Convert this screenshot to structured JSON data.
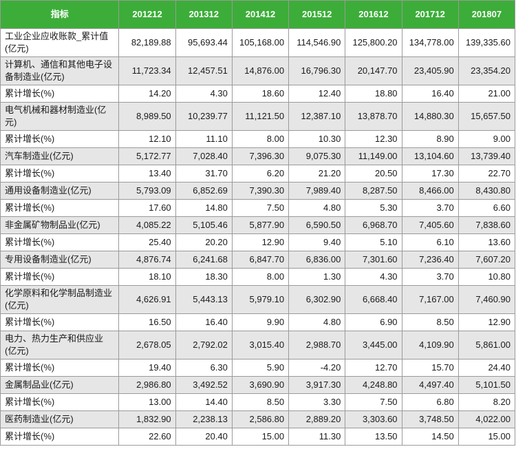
{
  "table": {
    "headers": [
      "指标",
      "201212",
      "201312",
      "201412",
      "201512",
      "201612",
      "201712",
      "201807"
    ],
    "rows": [
      {
        "label": "工业企业应收账款_累计值(亿元)",
        "values": [
          "82,189.88",
          "95,693.44",
          "105,168.00",
          "114,546.90",
          "125,800.20",
          "134,778.00",
          "139,335.60"
        ]
      },
      {
        "label": "计算机、通信和其他电子设备制造业(亿元)",
        "values": [
          "11,723.34",
          "12,457.51",
          "14,876.00",
          "16,796.30",
          "20,147.70",
          "23,405.90",
          "23,354.20"
        ]
      },
      {
        "label": "累计增长(%)",
        "values": [
          "14.20",
          "4.30",
          "18.60",
          "12.40",
          "18.80",
          "16.40",
          "21.00"
        ]
      },
      {
        "label": "电气机械和器材制造业(亿元)",
        "values": [
          "8,989.50",
          "10,239.77",
          "11,121.50",
          "12,387.10",
          "13,878.70",
          "14,880.30",
          "15,657.50"
        ]
      },
      {
        "label": "累计增长(%)",
        "values": [
          "12.10",
          "11.10",
          "8.00",
          "10.30",
          "12.30",
          "8.90",
          "9.00"
        ]
      },
      {
        "label": "汽车制造业(亿元)",
        "values": [
          "5,172.77",
          "7,028.40",
          "7,396.30",
          "9,075.30",
          "11,149.00",
          "13,104.60",
          "13,739.40"
        ]
      },
      {
        "label": "累计增长(%)",
        "values": [
          "13.40",
          "31.70",
          "6.20",
          "21.20",
          "20.50",
          "17.30",
          "22.70"
        ]
      },
      {
        "label": "通用设备制造业(亿元)",
        "values": [
          "5,793.09",
          "6,852.69",
          "7,390.30",
          "7,989.40",
          "8,287.50",
          "8,466.00",
          "8,430.80"
        ]
      },
      {
        "label": "累计增长(%)",
        "values": [
          "17.60",
          "14.80",
          "7.50",
          "4.80",
          "5.30",
          "3.70",
          "6.60"
        ]
      },
      {
        "label": "非金属矿物制品业(亿元)",
        "values": [
          "4,085.22",
          "5,105.46",
          "5,877.90",
          "6,590.50",
          "6,968.70",
          "7,405.60",
          "7,838.60"
        ]
      },
      {
        "label": "累计增长(%)",
        "values": [
          "25.40",
          "20.20",
          "12.90",
          "9.40",
          "5.10",
          "6.10",
          "13.60"
        ]
      },
      {
        "label": "专用设备制造业(亿元)",
        "values": [
          "4,876.74",
          "6,241.68",
          "6,847.70",
          "6,836.00",
          "7,301.60",
          "7,236.40",
          "7,607.20"
        ]
      },
      {
        "label": "累计增长(%)",
        "values": [
          "18.10",
          "18.30",
          "8.00",
          "1.30",
          "4.30",
          "3.70",
          "10.80"
        ]
      },
      {
        "label": "化学原料和化学制品制造业(亿元)",
        "values": [
          "4,626.91",
          "5,443.13",
          "5,979.10",
          "6,302.90",
          "6,668.40",
          "7,167.00",
          "7,460.90"
        ]
      },
      {
        "label": "累计增长(%)",
        "values": [
          "16.50",
          "16.40",
          "9.90",
          "4.80",
          "6.90",
          "8.50",
          "12.90"
        ]
      },
      {
        "label": "电力、热力生产和供应业(亿元)",
        "values": [
          "2,678.05",
          "2,792.02",
          "3,015.40",
          "2,988.70",
          "3,445.00",
          "4,109.90",
          "5,861.00"
        ]
      },
      {
        "label": "累计增长(%)",
        "values": [
          "19.40",
          "6.30",
          "5.90",
          "-4.20",
          "12.70",
          "15.70",
          "24.40"
        ]
      },
      {
        "label": "金属制品业(亿元)",
        "values": [
          "2,986.80",
          "3,492.52",
          "3,690.90",
          "3,917.30",
          "4,248.80",
          "4,497.40",
          "5,101.50"
        ]
      },
      {
        "label": "累计增长(%)",
        "values": [
          "13.00",
          "14.40",
          "8.50",
          "3.30",
          "7.50",
          "6.80",
          "8.20"
        ]
      },
      {
        "label": "医药制造业(亿元)",
        "values": [
          "1,832.90",
          "2,238.13",
          "2,586.80",
          "2,889.20",
          "3,303.60",
          "3,748.50",
          "4,022.00"
        ]
      },
      {
        "label": "累计增长(%)",
        "values": [
          "22.60",
          "20.40",
          "15.00",
          "11.30",
          "13.50",
          "14.50",
          "15.00"
        ]
      }
    ]
  },
  "colors": {
    "header_bg": "#3cad39",
    "header_text": "#ffffff",
    "row_shade": "#e6e6e6",
    "border": "#9a9a9a"
  }
}
